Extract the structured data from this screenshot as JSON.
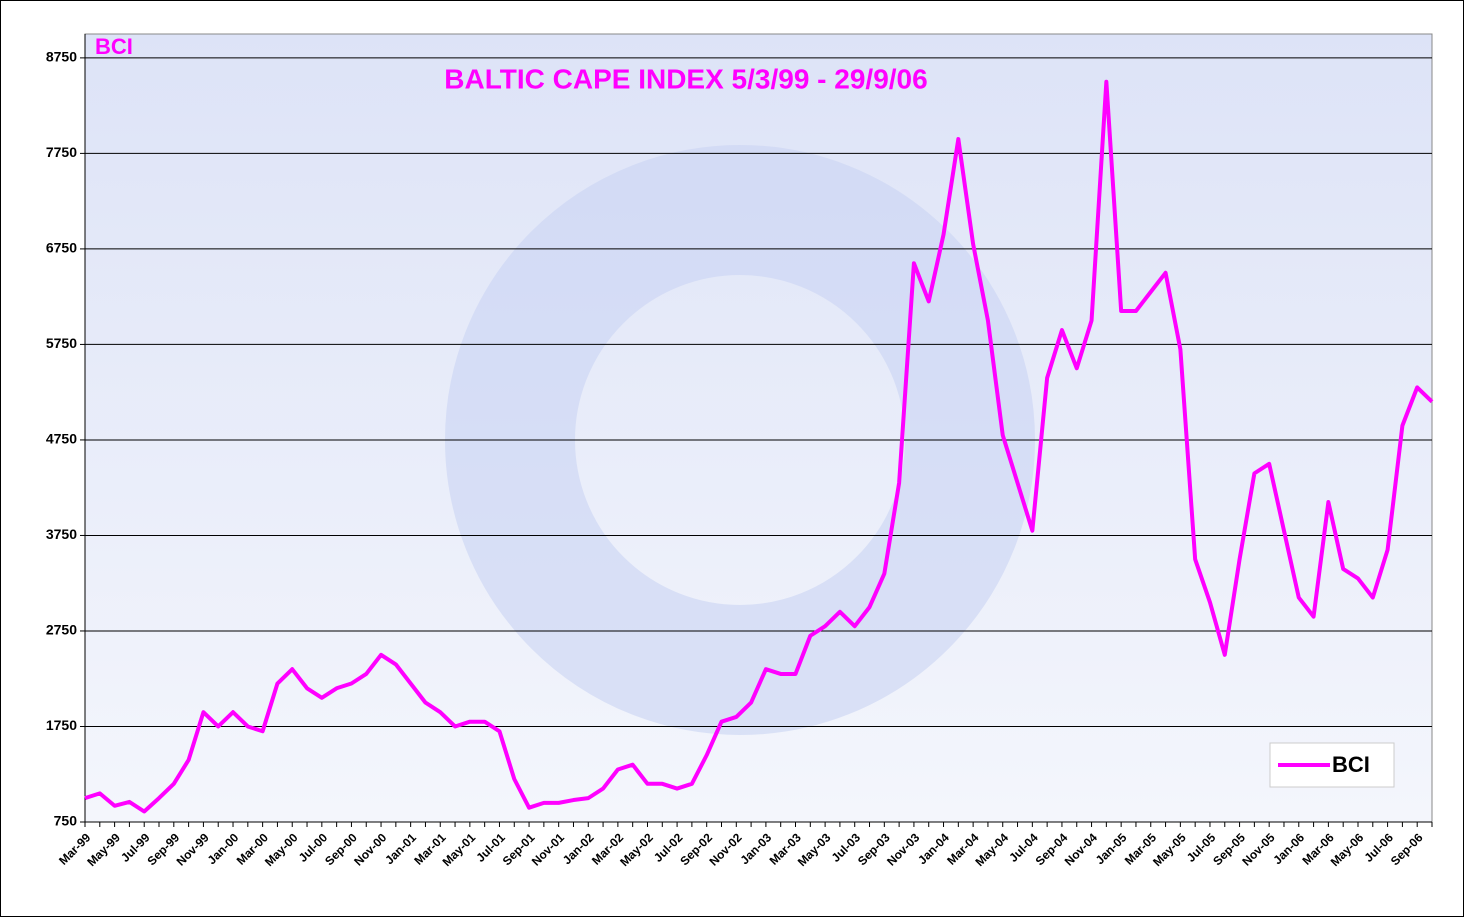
{
  "chart_data": {
    "type": "line",
    "title": "BALTIC CAPE INDEX 5/3/99 - 29/9/06",
    "y_label": "BCI",
    "categories": [
      "Mar-99",
      null,
      "May-99",
      null,
      "Jul-99",
      null,
      "Sep-99",
      null,
      "Nov-99",
      null,
      "Jan-00",
      null,
      "Mar-00",
      null,
      "May-00",
      null,
      "Jul-00",
      null,
      "Sep-00",
      null,
      "Nov-00",
      null,
      "Jan-01",
      null,
      "Mar-01",
      null,
      "May-01",
      null,
      "Jul-01",
      null,
      "Sep-01",
      null,
      "Nov-01",
      null,
      "Jan-02",
      null,
      "Mar-02",
      null,
      "May-02",
      null,
      "Jul-02",
      null,
      "Sep-02",
      null,
      "Nov-02",
      null,
      "Jan-03",
      null,
      "Mar-03",
      null,
      "May-03",
      null,
      "Jul-03",
      null,
      "Sep-03",
      null,
      "Nov-03",
      null,
      "Jan-04",
      null,
      "Mar-04",
      null,
      "May-04",
      null,
      "Jul-04",
      null,
      "Sep-04",
      null,
      "Nov-04",
      null,
      "Jan-05",
      null,
      "Mar-05",
      null,
      "May-05",
      null,
      "Jul-05",
      null,
      "Sep-05",
      null,
      "Nov-05",
      null,
      "Jan-06",
      null,
      "Mar-06",
      null,
      "May-06",
      null,
      "Jul-06",
      null,
      "Sep-06",
      null
    ],
    "series": [
      {
        "name": "BCI",
        "color": "#ff00ff",
        "values": [
          1000,
          1050,
          920,
          960,
          860,
          1000,
          1150,
          1400,
          1900,
          1750,
          1900,
          1750,
          1700,
          2200,
          2350,
          2150,
          2050,
          2150,
          2200,
          2300,
          2500,
          2400,
          2200,
          2000,
          1900,
          1750,
          1800,
          1800,
          1700,
          1200,
          900,
          950,
          950,
          980,
          1000,
          1100,
          1300,
          1350,
          1150,
          1150,
          1100,
          1150,
          1450,
          1800,
          1850,
          2000,
          2350,
          2300,
          2300,
          2700,
          2800,
          2950,
          2800,
          3000,
          3350,
          4300,
          6600,
          6200,
          6900,
          7900,
          6800,
          6000,
          4800,
          4300,
          3800,
          5400,
          5900,
          5500,
          6000,
          8500,
          6100,
          6100,
          6300,
          6500,
          5700,
          3500,
          3050,
          2500,
          3500,
          4400,
          4500,
          3800,
          3100,
          2900,
          4100,
          3400,
          3300,
          3100,
          3600,
          4900,
          5300,
          5150
        ]
      }
    ],
    "ylim": [
      750,
      9000
    ],
    "yticks": [
      750,
      1750,
      2750,
      3750,
      4750,
      5750,
      6750,
      7750,
      8750
    ],
    "grid": true,
    "legend": "lower right"
  }
}
